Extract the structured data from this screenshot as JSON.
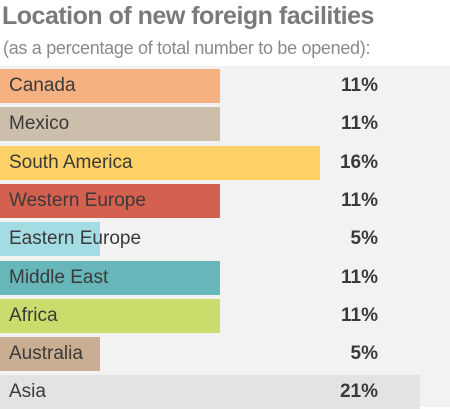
{
  "title": "Location of new foreign facilities",
  "subtitle": "(as a percentage of total number to be opened):",
  "chart_data": {
    "type": "bar",
    "orientation": "horizontal",
    "title": "Location of new foreign facilities",
    "subtitle": "(as a percentage of total number to be opened):",
    "categories": [
      "Canada",
      "Mexico",
      "South America",
      "Western Europe",
      "Eastern Europe",
      "Middle East",
      "Africa",
      "Australia",
      "Asia"
    ],
    "values": [
      11,
      11,
      16,
      11,
      5,
      11,
      11,
      5,
      21
    ],
    "value_labels": [
      "11%",
      "11%",
      "16%",
      "11%",
      "5%",
      "11%",
      "11%",
      "5%",
      "21%"
    ],
    "unit": "%",
    "colors": [
      "#f6b183",
      "#cbbfab",
      "#fdd165",
      "#d4614f",
      "#a4dce3",
      "#67b6b9",
      "#c8dd6b",
      "#c9ae92",
      "#e3e3e3"
    ],
    "grid": false,
    "legend": "none"
  }
}
